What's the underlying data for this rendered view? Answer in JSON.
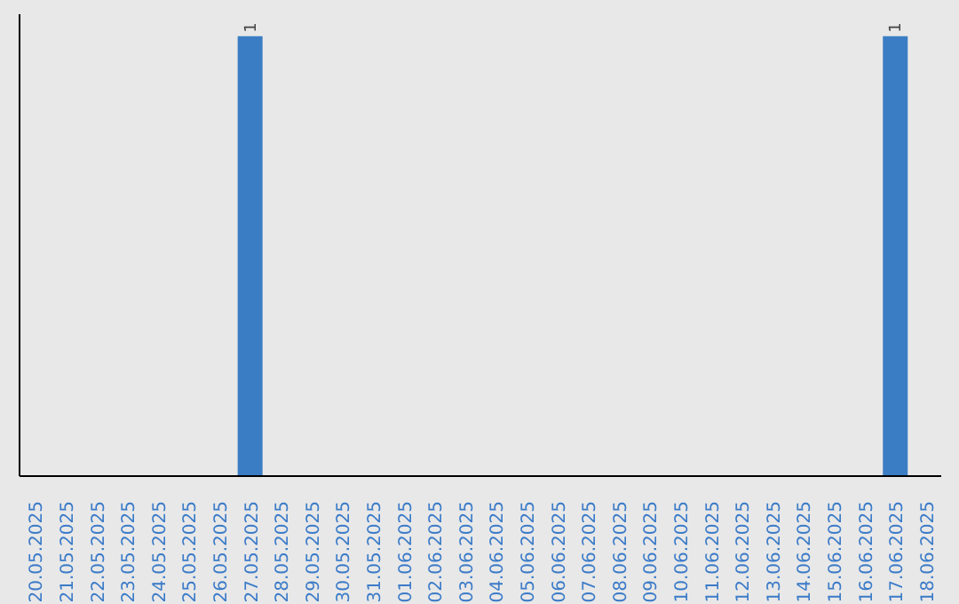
{
  "chart_data": {
    "type": "bar",
    "categories": [
      "20.05.2025",
      "21.05.2025",
      "22.05.2025",
      "23.05.2025",
      "24.05.2025",
      "25.05.2025",
      "26.05.2025",
      "27.05.2025",
      "28.05.2025",
      "29.05.2025",
      "30.05.2025",
      "31.05.2025",
      "01.06.2025",
      "02.06.2025",
      "03.06.2025",
      "04.06.2025",
      "05.06.2025",
      "06.06.2025",
      "07.06.2025",
      "08.06.2025",
      "09.06.2025",
      "10.06.2025",
      "11.06.2025",
      "12.06.2025",
      "13.06.2025",
      "14.06.2025",
      "15.06.2025",
      "16.06.2025",
      "17.06.2025",
      "18.06.2025"
    ],
    "values": [
      0,
      0,
      0,
      0,
      0,
      0,
      0,
      1,
      0,
      0,
      0,
      0,
      0,
      0,
      0,
      0,
      0,
      0,
      0,
      0,
      0,
      0,
      0,
      0,
      0,
      0,
      0,
      0,
      1,
      0
    ],
    "value_labels": [
      null,
      null,
      null,
      null,
      null,
      null,
      null,
      "1",
      null,
      null,
      null,
      null,
      null,
      null,
      null,
      null,
      null,
      null,
      null,
      null,
      null,
      null,
      null,
      null,
      null,
      null,
      null,
      null,
      "1",
      null
    ],
    "color": "#3b7dc4",
    "tick_labels": "x"
  }
}
